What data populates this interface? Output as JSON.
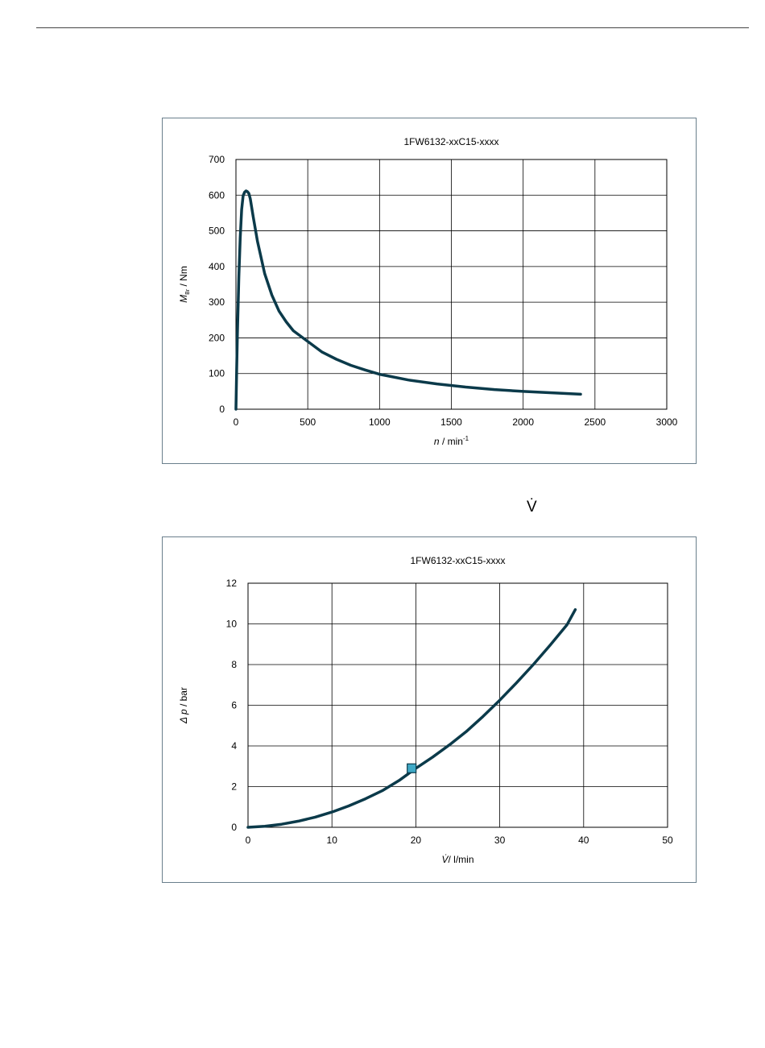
{
  "page": {
    "symbol": "V̇"
  },
  "chart_data": [
    {
      "type": "line",
      "title": "1FW6132-xxC15-xxxx",
      "xlabel_italic": "n",
      "xlabel_rest": " / min",
      "xlabel_sup": "-1",
      "ylabel_italic": "M",
      "ylabel_sub": "Br",
      "ylabel_rest": " / Nm",
      "xlim": [
        0,
        3000
      ],
      "ylim": [
        0,
        700
      ],
      "xticks": [
        0,
        500,
        1000,
        1500,
        2000,
        2500,
        3000
      ],
      "yticks": [
        0,
        100,
        200,
        300,
        400,
        500,
        600,
        700
      ],
      "grid": true,
      "line_color": "#0b3a4a",
      "series": [
        {
          "x": [
            0,
            5,
            10,
            20,
            30,
            40,
            50,
            60,
            70,
            80,
            90,
            100,
            120,
            150,
            200,
            250,
            300,
            350,
            400,
            500,
            600,
            700,
            800,
            900,
            1000,
            1200,
            1400,
            1600,
            1800,
            2000,
            2200,
            2400
          ],
          "y": [
            0,
            110,
            210,
            370,
            480,
            560,
            598,
            608,
            612,
            610,
            605,
            590,
            540,
            470,
            380,
            320,
            275,
            245,
            220,
            190,
            160,
            140,
            123,
            110,
            98,
            82,
            71,
            62,
            55,
            50,
            46,
            42
          ]
        }
      ]
    },
    {
      "type": "line",
      "title": "1FW6132-xxC15-xxxx",
      "xlabel_italic": "V̇",
      "xlabel_rest": "/ l/min",
      "ylabel_italic": "Δ p",
      "ylabel_rest": " / bar",
      "xlim": [
        0,
        50
      ],
      "ylim": [
        0,
        12
      ],
      "xticks": [
        0,
        10,
        20,
        30,
        40,
        50
      ],
      "yticks": [
        0,
        2,
        4,
        6,
        8,
        10,
        12
      ],
      "grid": true,
      "line_color": "#0b3a4a",
      "marker_color": "#3fa9c6",
      "series": [
        {
          "x": [
            0,
            2,
            4,
            6,
            8,
            10,
            12,
            14,
            16,
            18,
            20,
            22,
            24,
            26,
            28,
            30,
            32,
            34,
            36,
            38,
            39
          ],
          "y": [
            0,
            0.05,
            0.15,
            0.3,
            0.5,
            0.75,
            1.05,
            1.4,
            1.8,
            2.3,
            2.9,
            3.45,
            4.05,
            4.7,
            5.45,
            6.25,
            7.1,
            8.0,
            8.95,
            9.95,
            10.7
          ]
        }
      ],
      "marker": {
        "x": 19.5,
        "y": 2.9
      }
    }
  ]
}
